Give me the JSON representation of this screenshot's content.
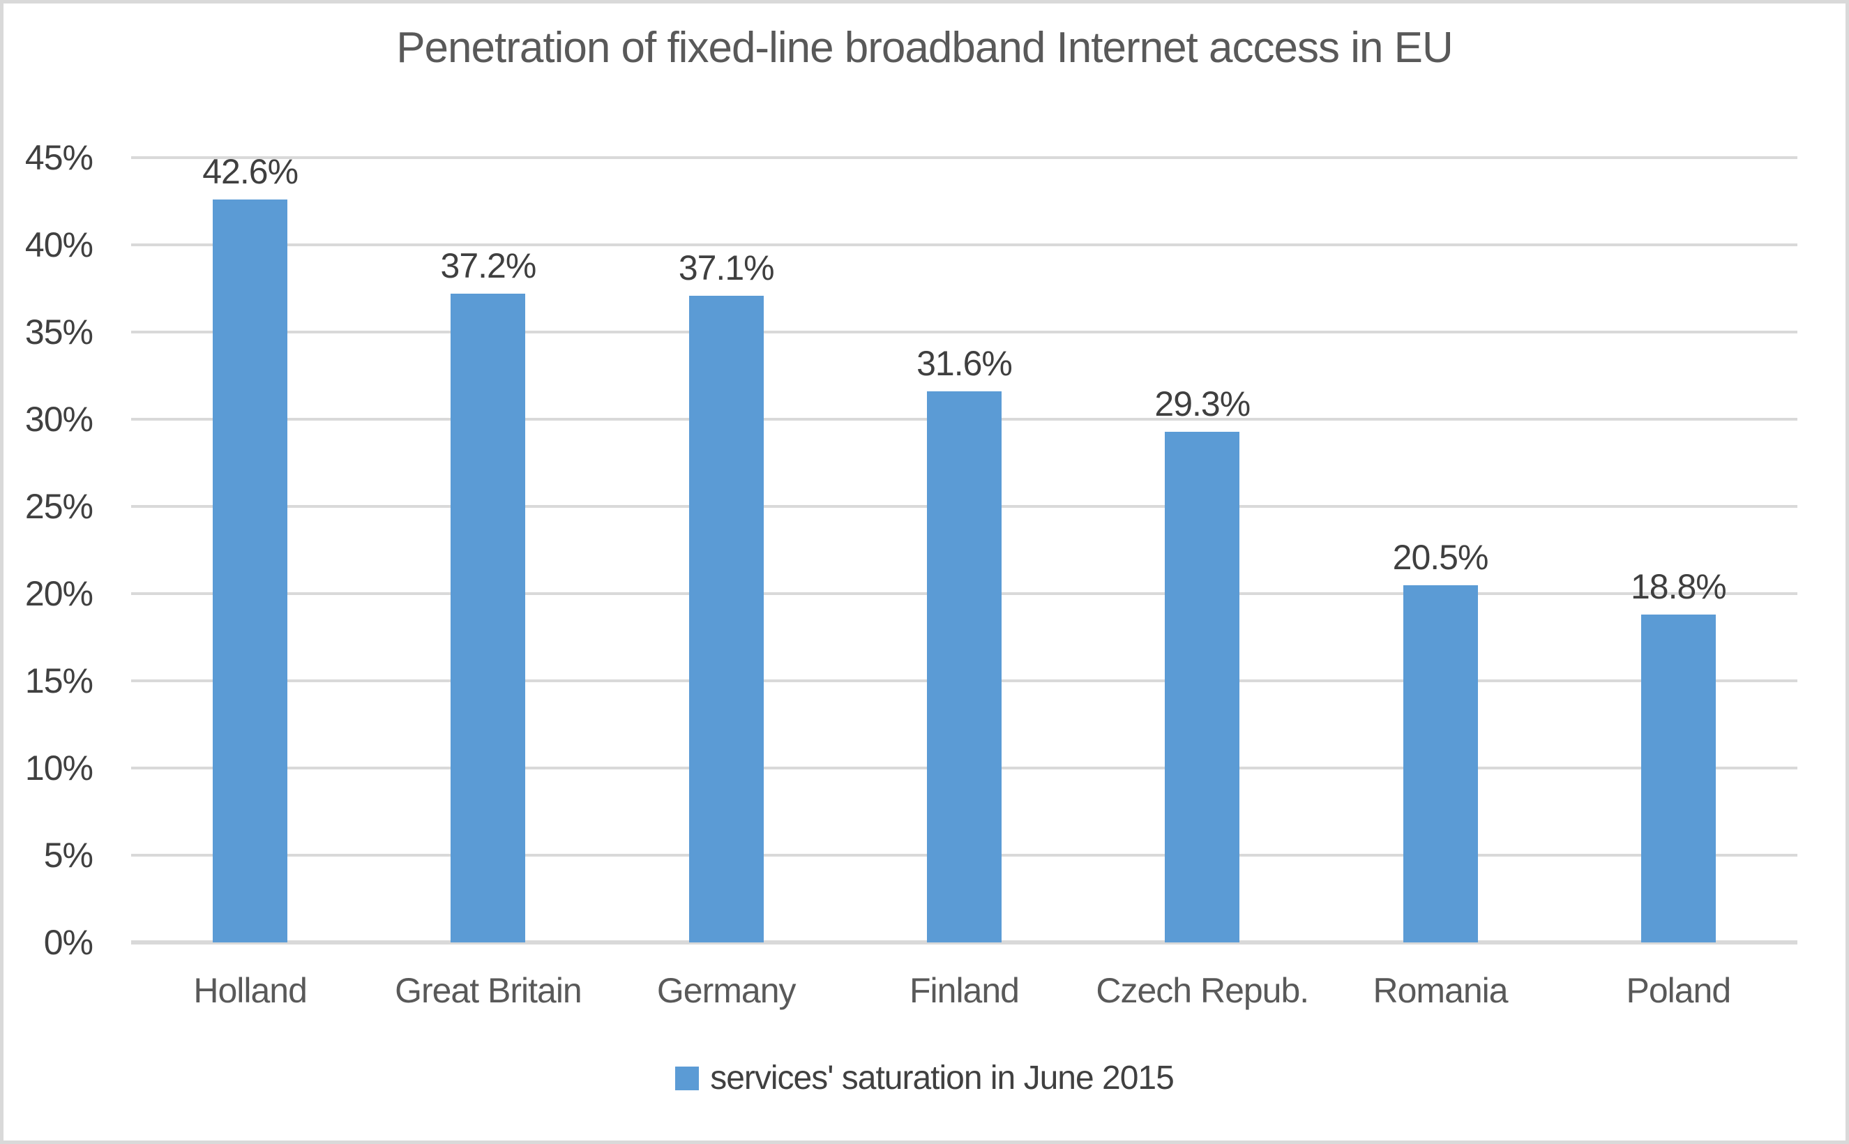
{
  "colors": {
    "bar": "#5b9bd5",
    "gridline": "#d9d9d9",
    "axis_line": "#d9d9d9",
    "tick_text": "#404040",
    "title_text": "#595959",
    "frame_border": "#d9d9d9",
    "background": "#ffffff"
  },
  "legend": {
    "label": "services' saturation in June 2015",
    "swatch_color": "#5b9bd5"
  },
  "chart_data": {
    "type": "bar",
    "title": "Penetration of fixed-line broadband Internet access in EU",
    "categories": [
      "Holland",
      "Great Britain",
      "Germany",
      "Finland",
      "Czech Repub.",
      "Romania",
      "Poland"
    ],
    "values": [
      42.6,
      37.2,
      37.1,
      31.6,
      29.3,
      20.5,
      18.8
    ],
    "value_labels": [
      "42.6%",
      "37.2%",
      "37.1%",
      "31.6%",
      "29.3%",
      "20.5%",
      "18.8%"
    ],
    "series_name": "services' saturation in June 2015",
    "xlabel": "",
    "ylabel": "",
    "ylim": [
      0,
      45
    ],
    "ytick_step": 5,
    "ytick_labels": [
      "0%",
      "5%",
      "10%",
      "15%",
      "20%",
      "25%",
      "30%",
      "35%",
      "40%",
      "45%"
    ],
    "grid": true,
    "legend_position": "bottom"
  }
}
